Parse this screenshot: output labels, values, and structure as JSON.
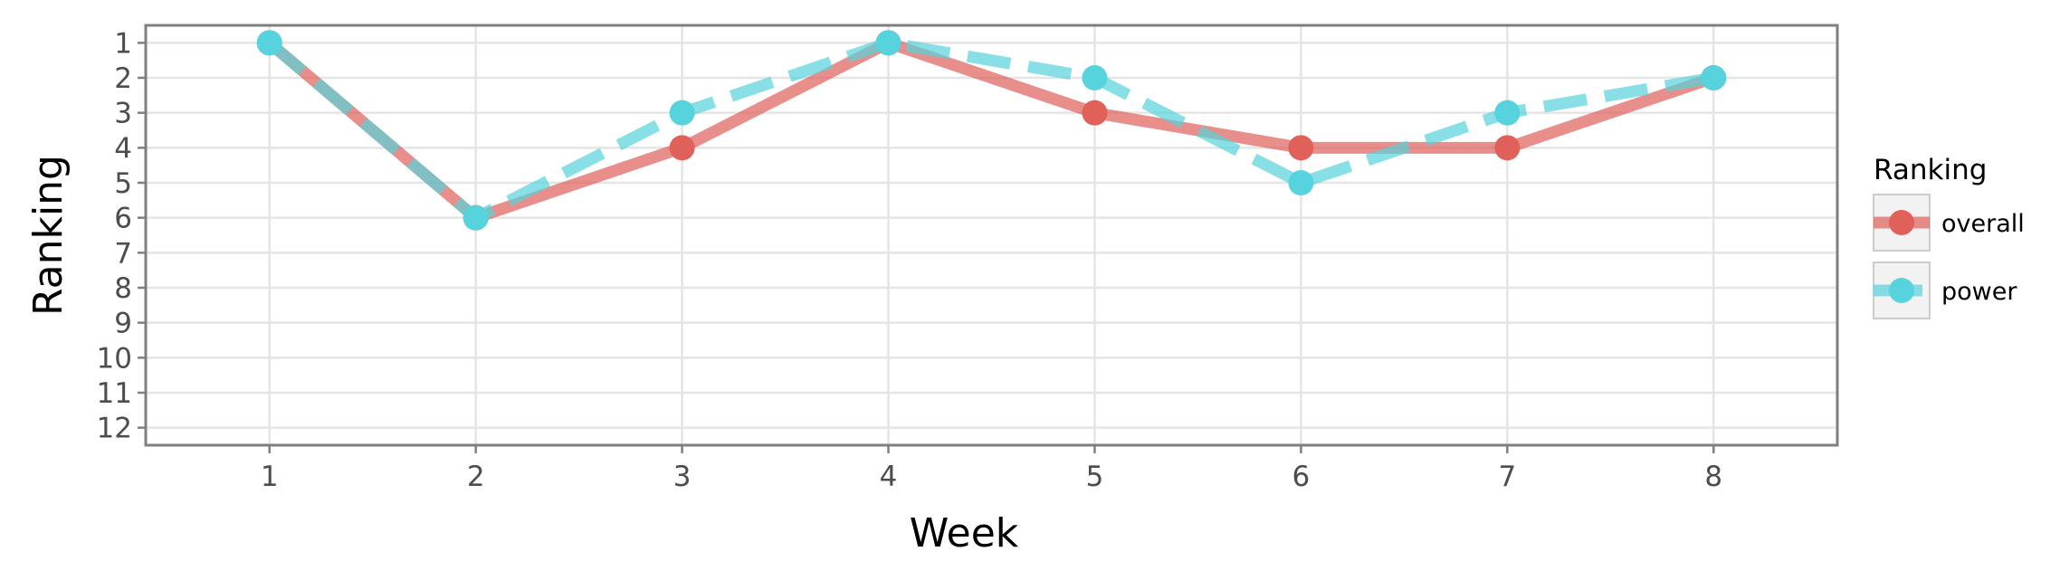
{
  "chart_data": {
    "type": "line",
    "title": "",
    "xlabel": "Week",
    "ylabel": "Ranking",
    "x": [
      1,
      2,
      3,
      4,
      5,
      6,
      7,
      8
    ],
    "x_ticks": [
      "1",
      "2",
      "3",
      "4",
      "5",
      "6",
      "7",
      "8"
    ],
    "xlim": [
      0.4,
      8.6
    ],
    "y_ticks": [
      "1",
      "2",
      "3",
      "4",
      "5",
      "6",
      "7",
      "8",
      "9",
      "10",
      "11",
      "12"
    ],
    "ylim": [
      0.5,
      12.5
    ],
    "y_reversed": true,
    "grid": true,
    "legend": {
      "title": "Ranking",
      "position": "right"
    },
    "series": [
      {
        "name": "overall",
        "values": [
          1,
          6,
          4,
          1,
          3,
          4,
          4,
          2
        ],
        "color": "#e0605a",
        "line_style": "solid"
      },
      {
        "name": "power",
        "values": [
          1,
          6,
          3,
          1,
          2,
          5,
          3,
          2
        ],
        "color": "#56d3dc",
        "line_style": "dashed"
      }
    ]
  }
}
